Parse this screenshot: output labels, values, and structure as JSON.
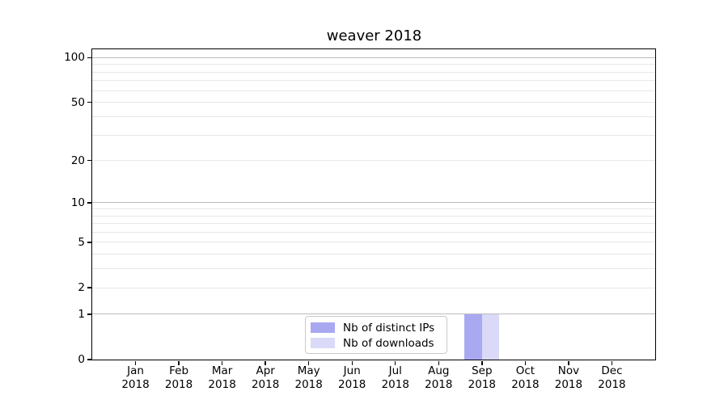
{
  "chart_data": {
    "type": "bar",
    "title": "weaver 2018",
    "categories": [
      "Jan 2018",
      "Feb 2018",
      "Mar 2018",
      "Apr 2018",
      "May 2018",
      "Jun 2018",
      "Jul 2018",
      "Aug 2018",
      "Sep 2018",
      "Oct 2018",
      "Nov 2018",
      "Dec 2018"
    ],
    "series": [
      {
        "name": "Nb of distinct IPs",
        "color": "#a9a9f2",
        "values": [
          0,
          0,
          0,
          0,
          0,
          0,
          0,
          0,
          1,
          0,
          0,
          0
        ]
      },
      {
        "name": "Nb of downloads",
        "color": "#dadaf8",
        "values": [
          0,
          0,
          0,
          0,
          0,
          0,
          0,
          0,
          1,
          0,
          0,
          0
        ]
      }
    ],
    "xlabel": "",
    "ylabel": "",
    "yscale": "log1p",
    "ylim": [
      0,
      113
    ],
    "yticks": [
      0,
      1,
      2,
      5,
      10,
      20,
      50,
      100
    ],
    "minor_yticks": [
      3,
      4,
      6,
      7,
      8,
      9,
      30,
      40,
      60,
      70,
      80,
      90
    ],
    "emphasized_gridlines": [
      1,
      10,
      100
    ],
    "grid": "horizontal",
    "legend_position": "lower-center-inside",
    "colors": {
      "major_grid": "#bbbbbb",
      "minor_grid": "#e7e7e7",
      "axis": "#000000",
      "text": "#000000",
      "background": "#ffffff"
    }
  }
}
